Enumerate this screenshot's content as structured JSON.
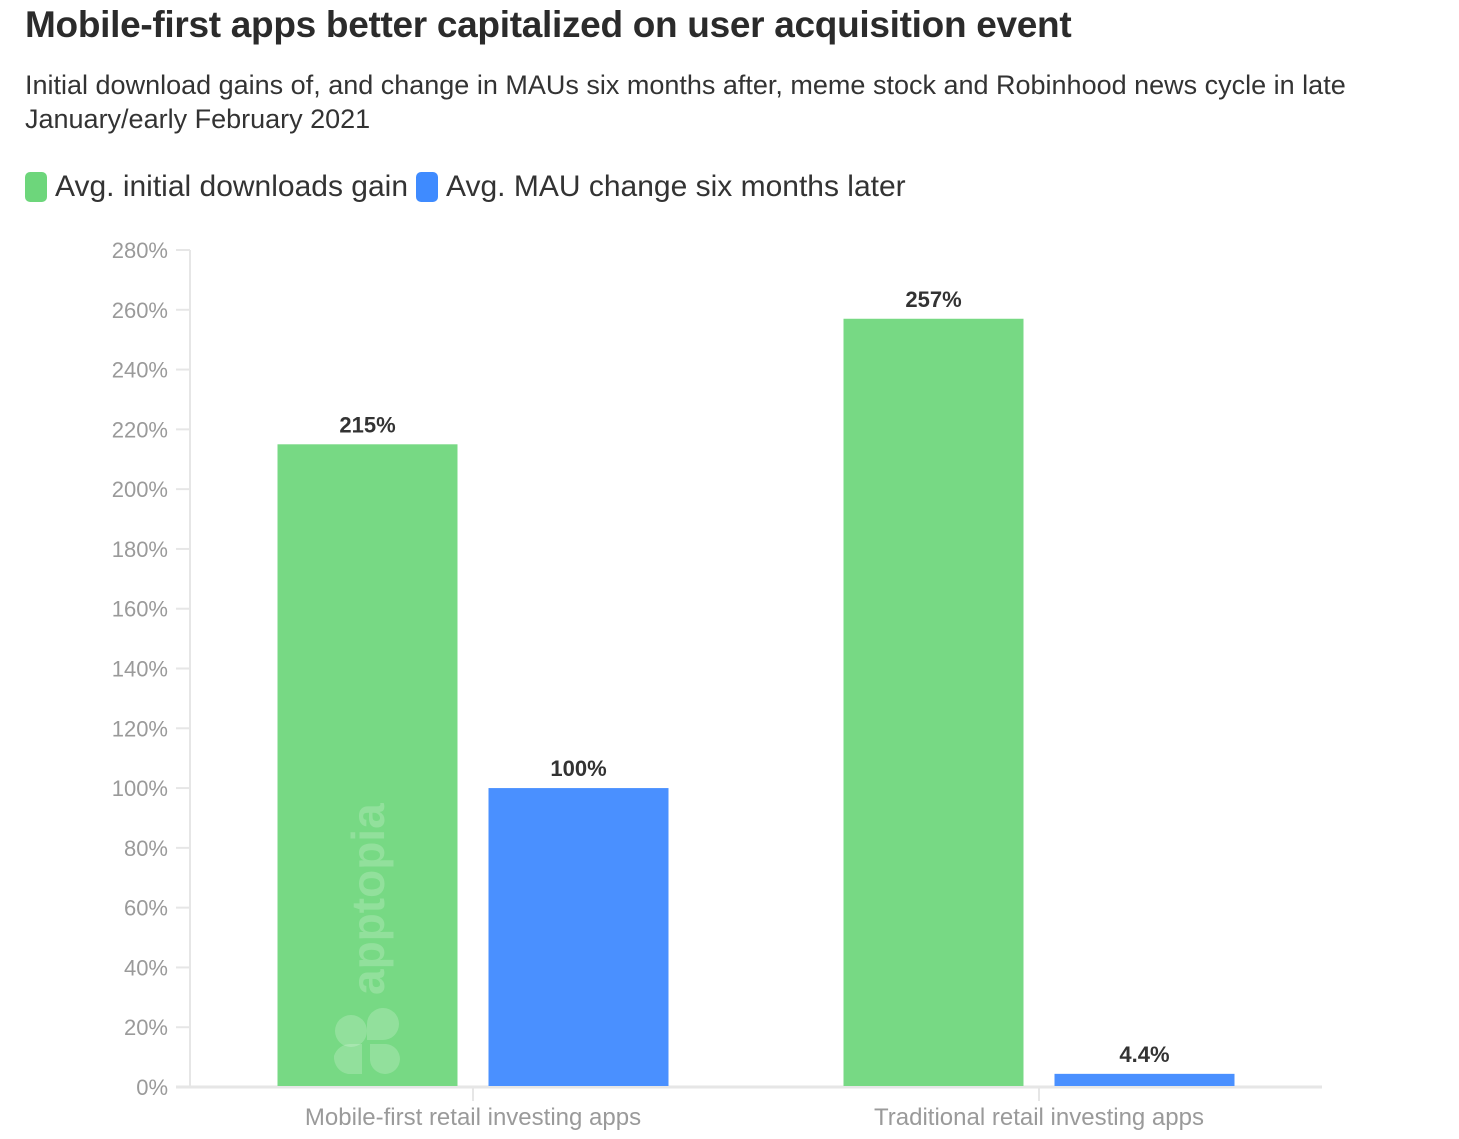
{
  "chart_data": {
    "type": "bar",
    "title": "Mobile-first apps better capitalized on user acquisition event",
    "subtitle": "Initial download gains of, and change in MAUs six months after, meme stock and Robinhood news cycle in late January/early February 2021",
    "categories": [
      "Mobile-first retail investing apps",
      "Traditional retail investing apps"
    ],
    "series": [
      {
        "name": "Avg. initial downloads gain",
        "color": "#77d984",
        "values": [
          215,
          257
        ],
        "labels": [
          "215%",
          "257%"
        ]
      },
      {
        "name": "Avg. MAU change six months later",
        "color": "#4a90ff",
        "values": [
          100,
          4.4
        ],
        "labels": [
          "100%",
          "4.4%"
        ]
      }
    ],
    "ylim": [
      0,
      280
    ],
    "yticks": [
      "0%",
      "20%",
      "40%",
      "60%",
      "80%",
      "100%",
      "120%",
      "140%",
      "160%",
      "180%",
      "200%",
      "220%",
      "240%",
      "260%",
      "280%"
    ],
    "legend_position": "top-left",
    "grid": false,
    "watermark": "apptopia"
  }
}
